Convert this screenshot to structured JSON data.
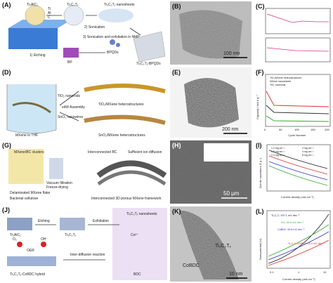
{
  "panels": {
    "A": {
      "label": "(A)",
      "texts": [
        "Ti₃AlC₂",
        "Ti",
        "Al",
        "C",
        "Ti₃C₂Tₓ",
        "Ti₃C₂Tₓ nanosheets",
        "1) Etching",
        "2) Sonication",
        "3) Sonication and exfoliation in NMP",
        "BP",
        "BPQDs",
        "Ti₃C₂Tₓ-BPQDs"
      ]
    },
    "B": {
      "label": "(B)",
      "scale": "100 nm"
    },
    "C": {
      "label": "(C)"
    },
    "D": {
      "label": "(D)",
      "texts": [
        "TiO₂ nanorods",
        "SnO₂ nanowires",
        "MXene in THF",
        "vdW Assembly",
        "TiO₂/MXene heterostructures",
        "SnO₂/MXene heterostructures"
      ]
    },
    "E": {
      "label": "(E)",
      "scale": "200 nm"
    },
    "F": {
      "label": "(F)",
      "ylabel": "Capacity / mA h g⁻¹",
      "xlabel": "Cycle Number",
      "xticks": [
        "0",
        "50",
        "100",
        "150",
        "200"
      ],
      "legend": [
        "TiO₂/MXene heterostructures",
        "MXene nanosheets",
        "TiO₂ nanorods"
      ]
    },
    "G": {
      "label": "(G)",
      "texts": [
        "MXene/BC clusters",
        "Interconnected BC",
        "Sufficient ion diffusion",
        "Vacuum filtration",
        "Freeze-drying",
        "Delaminated MXene flake",
        "Bacterial cellulose",
        "Interconnected 3D porous MXene framework"
      ]
    },
    "H": {
      "label": "(H)",
      "scale": "50 μm"
    },
    "I": {
      "label": "(I)",
      "ylabel": "Specific capacitance (F g⁻¹)",
      "xlabel": "Current density (mA cm⁻²)",
      "legend": [
        "1.2 mg cm⁻²",
        "1.8 mg cm⁻²",
        "2.4 mg cm⁻²",
        "3 mg cm⁻²",
        "4 mg cm⁻²",
        "8 mg cm⁻²"
      ]
    },
    "J": {
      "label": "(J)",
      "texts": [
        "Ti₃AlC₂",
        "Etching",
        "Ti₃C₂Tₓ",
        "Exfoliation",
        "Ti₃C₂Tₓ nanosheets",
        "Co²⁺",
        "O₂",
        "OH⁻",
        "OER",
        "Inter-diffusion reaction",
        "Ti₃C₂Tₓ-CoBDC hybrid",
        "BDC"
      ]
    },
    "K": {
      "label": "(K)",
      "texts": [
        "Ti₃C₂Tₓ",
        "CoBDC"
      ],
      "scale": "10 nm"
    },
    "L": {
      "label": "(L)",
      "ylabel": "Overpotential (V)",
      "xlabel": "Current density (mA cm⁻²)",
      "xticks": [
        "0.1",
        "1",
        "10"
      ],
      "legend": [
        "Ti₃C₂Tₓ 197.1 mV dec⁻¹",
        "IrO₂ 63.6 mV dec⁻¹",
        "CoBDC 49.8 mV dec⁻¹",
        "Ti₃C₂Tₓ-CoBDC 48.2 mV dec⁻¹"
      ]
    }
  }
}
